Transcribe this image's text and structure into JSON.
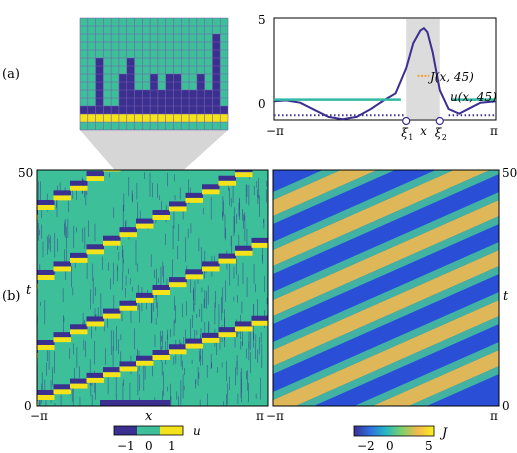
{
  "panels": {
    "a_label": "(a)",
    "b_label": "(b)"
  },
  "colors": {
    "u_minus1": "#3b2f8f",
    "u_zero": "#3dbf9a",
    "u_one": "#f4e21a",
    "grid_line": "#7a5fb0",
    "J_line": "#3b2f8f",
    "u_line": "#33b8a3",
    "J_segment_orange": "#f0a030",
    "shade": "#dcdcdc"
  },
  "chart_data": [
    {
      "id": "inset_grid",
      "type": "heatmap",
      "description_values": "column heights of u=-1 cells above a u=-1 row and u=1 row",
      "column_heights": [
        0,
        0,
        6,
        0,
        0,
        4,
        6,
        2,
        2,
        4,
        2,
        4,
        4,
        2,
        2,
        4,
        2,
        9,
        0
      ],
      "rows": 14,
      "cols": 19
    },
    {
      "id": "profile_plot",
      "type": "line",
      "xlabel": "x",
      "xticks": [
        "−π",
        "π"
      ],
      "yticks": [
        "0",
        "5"
      ],
      "xlim": [
        -3.1416,
        3.1416
      ],
      "ylim": [
        -1.3,
        5.2
      ],
      "shaded_region": [
        0.6,
        1.55
      ],
      "markers": [
        {
          "label": "ξ",
          "sub": "1",
          "x": 0.6
        },
        {
          "label": "x",
          "sub": "",
          "x": 1.08
        },
        {
          "label": "ξ",
          "sub": "2",
          "x": 1.55
        }
      ],
      "series": [
        {
          "name": "J(x, 45)",
          "x": [
            -3.14,
            -2.8,
            -2.4,
            -2.0,
            -1.6,
            -1.2,
            -0.8,
            -0.4,
            0.0,
            0.3,
            0.6,
            0.8,
            1.0,
            1.1,
            1.2,
            1.35,
            1.55,
            1.8,
            2.1,
            2.4,
            2.7,
            3.14
          ],
          "y": [
            -0.1,
            -0.05,
            -0.2,
            -0.65,
            -1.1,
            -1.25,
            -1.1,
            -0.6,
            0.0,
            0.4,
            2.0,
            3.6,
            4.4,
            4.55,
            4.3,
            3.0,
            0.6,
            -0.6,
            -0.9,
            -0.55,
            -0.2,
            -0.1
          ]
        },
        {
          "name": "u(x, 45)",
          "segments": [
            {
              "x0": -3.14,
              "x1": 0.45,
              "y": 0
            },
            {
              "x0": 1.9,
              "x1": 3.14,
              "y": 0
            }
          ],
          "dotted_segments": [
            {
              "x0": -3.14,
              "x1": 0.55,
              "y": -1
            },
            {
              "x0": 1.8,
              "x1": 3.14,
              "y": -1
            }
          ],
          "one_segment": {
            "x0": 0.92,
            "x1": 1.25,
            "y": 1
          }
        }
      ]
    },
    {
      "id": "u_field",
      "type": "heatmap",
      "xlabel": "x",
      "ylabel": "t",
      "xticks": [
        "−π",
        "π"
      ],
      "yticks": [
        "0",
        "50"
      ],
      "colorbar": {
        "label": "u",
        "ticks": [
          "−1",
          "0",
          "1"
        ]
      }
    },
    {
      "id": "J_field",
      "type": "heatmap",
      "ylabel": "t",
      "xticks": [
        "−π",
        "π"
      ],
      "yticks": [
        "0",
        "50"
      ],
      "colorbar": {
        "label": "J",
        "ticks": [
          "−2",
          "0",
          "5"
        ]
      }
    }
  ],
  "labels": {
    "J_curve": "J(x, 45)",
    "u_curve": "u(x, 45)",
    "x_axis": "x",
    "t_axis": "t",
    "neg_pi": "−π",
    "pi": "π",
    "y0": "0",
    "y5": "5",
    "t0": "0",
    "t50": "50",
    "xi": "ξ",
    "sub1": "1",
    "sub2": "2",
    "u_cb_label": "u",
    "u_cb_m1": "−1",
    "u_cb_0": "0",
    "u_cb_1": "1",
    "J_cb_label": "J",
    "J_cb_m2": "−2",
    "J_cb_0": "0",
    "J_cb_5": "5"
  }
}
